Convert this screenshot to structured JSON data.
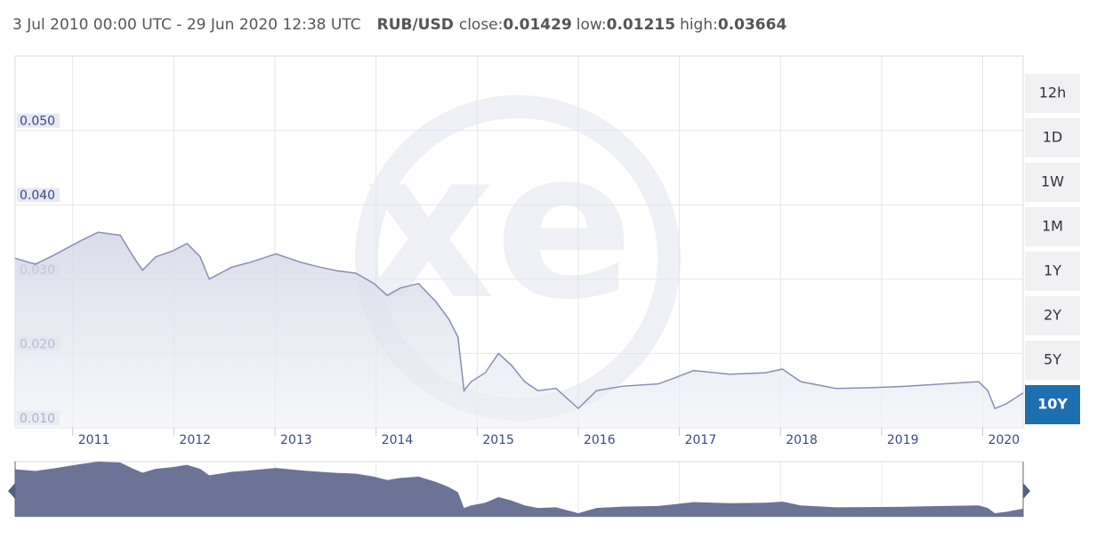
{
  "chart_data": {
    "type": "line",
    "date_range": "3 Jul 2010 00:00 UTC - 29 Jun 2020 12:38 UTC",
    "pair": "RUB/USD",
    "stats": [
      {
        "label": "close:",
        "value": 0.01429
      },
      {
        "label": "low:",
        "value": 0.01215
      },
      {
        "label": "high:",
        "value": 0.03664
      }
    ],
    "watermark": "xe",
    "x": [
      2010.43,
      2010.63,
      2010.81,
      2011.07,
      2011.25,
      2011.47,
      2011.6,
      2011.69,
      2011.82,
      2011.99,
      2012.13,
      2012.26,
      2012.35,
      2012.57,
      2012.74,
      2013.01,
      2013.27,
      2013.45,
      2013.62,
      2013.8,
      2013.98,
      2014.11,
      2014.24,
      2014.42,
      2014.59,
      2014.72,
      2014.81,
      2014.87,
      2014.94,
      2015.08,
      2015.21,
      2015.34,
      2015.47,
      2015.6,
      2015.78,
      2016.0,
      2016.18,
      2016.44,
      2016.79,
      2016.97,
      2017.14,
      2017.5,
      2017.85,
      2018.02,
      2018.2,
      2018.55,
      2018.9,
      2019.26,
      2019.61,
      2019.96,
      2020.05,
      2020.12,
      2020.23,
      2020.4
    ],
    "series": [
      {
        "color": "#8a8fb3",
        "values": [
          0.0328,
          0.032,
          0.0332,
          0.0351,
          0.0363,
          0.0359,
          0.033,
          0.0312,
          0.033,
          0.0338,
          0.0348,
          0.033,
          0.03,
          0.0316,
          0.0322,
          0.0334,
          0.0322,
          0.0316,
          0.0311,
          0.0308,
          0.0294,
          0.0278,
          0.0288,
          0.0294,
          0.027,
          0.0246,
          0.0222,
          0.015,
          0.0162,
          0.0174,
          0.02,
          0.0184,
          0.0162,
          0.015,
          0.0153,
          0.0126,
          0.015,
          0.0156,
          0.0159,
          0.0168,
          0.0177,
          0.0172,
          0.0174,
          0.0179,
          0.0162,
          0.0153,
          0.0154,
          0.0156,
          0.0159,
          0.0162,
          0.015,
          0.0126,
          0.0132,
          0.0147
        ]
      }
    ],
    "xlim": [
      2010.43,
      2020.4
    ],
    "xticks": [
      2011,
      2012,
      2013,
      2014,
      2015,
      2016,
      2017,
      2018,
      2019,
      2020
    ],
    "ylim": [
      0.01,
      0.06
    ],
    "yticks": [
      {
        "value": 0.01,
        "label": "0.010"
      },
      {
        "value": 0.02,
        "label": "0.020"
      },
      {
        "value": 0.03,
        "label": "0.030"
      },
      {
        "value": 0.04,
        "label": "0.040"
      },
      {
        "value": 0.05,
        "label": "0.050"
      }
    ],
    "grid": true,
    "navigator": true
  },
  "controls": {
    "ranges": [
      "12h",
      "1D",
      "1W",
      "1M",
      "1Y",
      "2Y",
      "5Y",
      "10Y"
    ],
    "active": "10Y"
  }
}
